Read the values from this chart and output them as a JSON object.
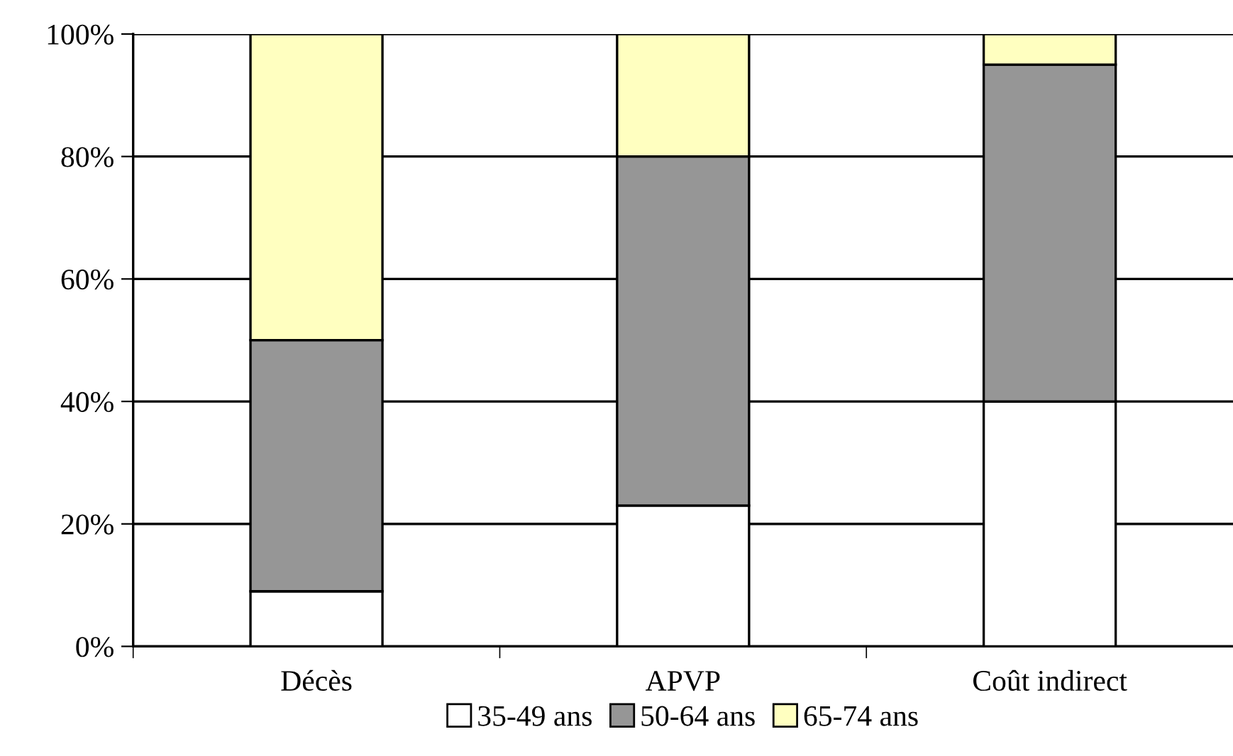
{
  "chart_data": {
    "type": "bar",
    "stacked": true,
    "categories": [
      "Décès",
      "APVP",
      "Coût indirect"
    ],
    "series": [
      {
        "name": "35-49 ans",
        "color": "#ffffff",
        "values": [
          9,
          23,
          40
        ]
      },
      {
        "name": "50-64 ans",
        "color": "#969696",
        "values": [
          41,
          57,
          55
        ]
      },
      {
        "name": "65-74 ans",
        "color": "#ffffc0",
        "values": [
          50,
          20,
          5
        ]
      }
    ],
    "ylim": [
      0,
      100
    ],
    "yticks": [
      {
        "value": 0,
        "label": "0%"
      },
      {
        "value": 20,
        "label": "20%"
      },
      {
        "value": 40,
        "label": "40%"
      },
      {
        "value": 60,
        "label": "60%"
      },
      {
        "value": 80,
        "label": "80%"
      },
      {
        "value": 100,
        "label": "100%"
      }
    ],
    "grid": "y",
    "legend": "bottom"
  }
}
